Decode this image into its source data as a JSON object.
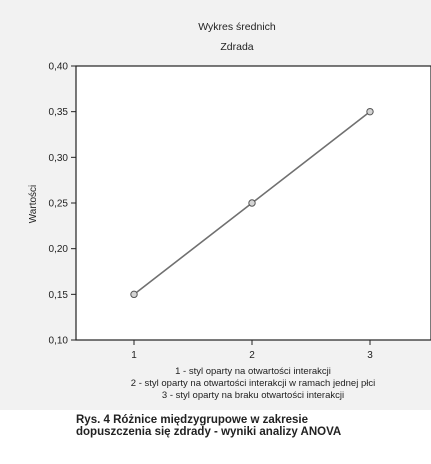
{
  "chart_data": {
    "type": "line",
    "title": "Wykres średnich",
    "subtitle": "Zdrada",
    "ylabel": "Wartości",
    "xlabel": "",
    "categories": [
      "1",
      "2",
      "3"
    ],
    "series": [
      {
        "values": [
          0.15,
          0.25,
          0.35
        ]
      }
    ],
    "ylim": [
      0.1,
      0.4
    ],
    "yticks": [
      "0,10",
      "0,15",
      "0,20",
      "0,25",
      "0,30",
      "0,35",
      "0,40"
    ],
    "grid": false,
    "legend_lines": [
      "1 - styl oparty na otwartości interakcji",
      "2 - styl oparty na otwartości interakcji w ramach jednej płci",
      "3 - styl oparty na braku otwartości interakcji"
    ],
    "colors": {
      "line": "#707070",
      "marker_fill": "#d4d4d4"
    }
  },
  "caption": {
    "line1": "Rys. 4 Różnice międzygrupowe w zakresie",
    "line2": "dopuszczenia się zdrady - wyniki analizy ANOVA"
  }
}
